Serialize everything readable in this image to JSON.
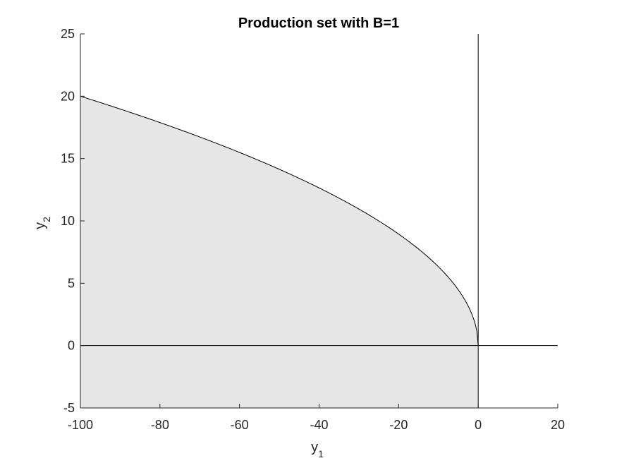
{
  "chart_data": {
    "type": "area",
    "title": "Production set with B=1",
    "xlabel": {
      "base": "y",
      "sub": "1"
    },
    "ylabel": {
      "base": "y",
      "sub": "2"
    },
    "xlim": [
      -100,
      20
    ],
    "ylim": [
      -5,
      25
    ],
    "xticks": [
      -100,
      -80,
      -60,
      -40,
      -20,
      0,
      20
    ],
    "yticks": [
      -5,
      0,
      5,
      10,
      15,
      20,
      25
    ],
    "grid": false,
    "frontier": {
      "function": "y2 = 2*sqrt(-y1)",
      "x": [
        -100,
        -90,
        -80,
        -70,
        -60,
        -50,
        -40,
        -30,
        -20,
        -10,
        -5,
        -2,
        -1,
        0
      ],
      "y": [
        20,
        18.97,
        17.89,
        16.73,
        15.49,
        14.14,
        12.65,
        10.95,
        8.94,
        6.32,
        4.47,
        2.83,
        2,
        0
      ]
    },
    "colors": {
      "fill": "#e6e6e6",
      "line": "#000000",
      "axes": "#262626"
    }
  }
}
